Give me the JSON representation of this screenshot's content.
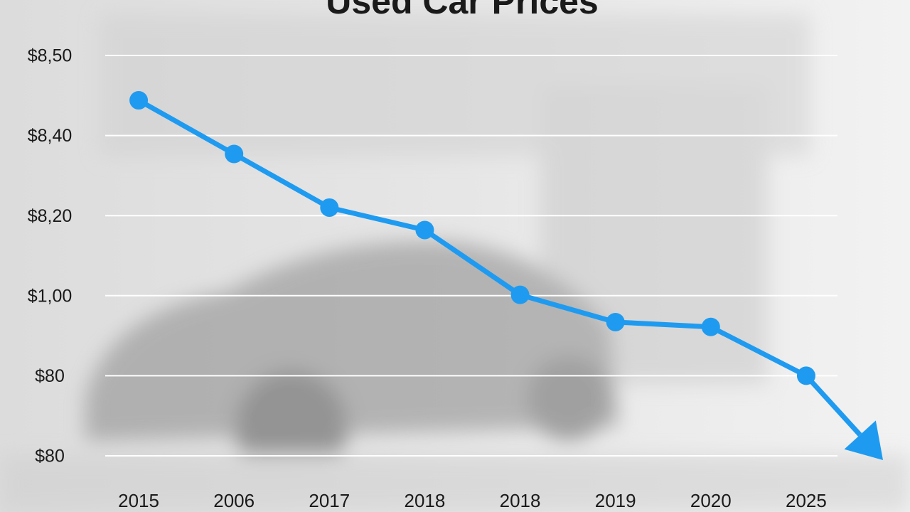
{
  "chart_data": {
    "type": "line",
    "title": "Used Car Prices",
    "categories": [
      "2015",
      "2006",
      "2017",
      "2018",
      "2018",
      "2019",
      "2020",
      "2025"
    ],
    "series": [
      {
        "name": "Used Car Prices",
        "color": "#1e9bf0",
        "values": [
          4.44,
          3.77,
          3.1,
          2.82,
          2.01,
          1.67,
          1.61,
          1.0
        ]
      }
    ],
    "ylim": [
      0,
      5
    ],
    "yticks": [
      {
        "value": 0,
        "label": "$80"
      },
      {
        "value": 1,
        "label": "$80"
      },
      {
        "value": 2,
        "label": "$1,00"
      },
      {
        "value": 3,
        "label": "$8,20"
      },
      {
        "value": 4,
        "label": "$8,40"
      },
      {
        "value": 5,
        "label": "$8,50"
      }
    ],
    "grid": true
  }
}
